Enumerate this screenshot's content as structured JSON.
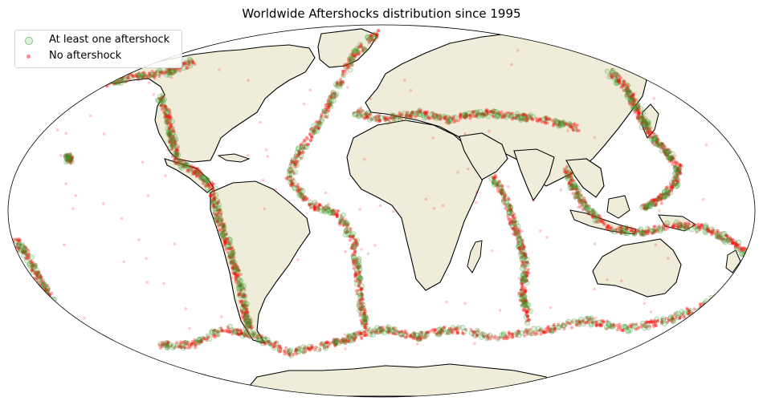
{
  "title": "Worldwide Aftershocks distribution since 1995",
  "legend": {
    "placement": "top-left",
    "items": [
      {
        "label": "At least one aftershock",
        "color": "#2ca02c"
      },
      {
        "label": "No aftershock",
        "color": "#ff0000"
      }
    ]
  },
  "map": {
    "projection": "Mollweide",
    "land_color": "#efedda",
    "coast_color": "#000000",
    "ocean_color": "#ffffff"
  },
  "series": [
    {
      "name": "At least one aftershock",
      "color": "#2ca02c",
      "marker": "hollow-circle"
    },
    {
      "name": "No aftershock",
      "color": "#ff0000",
      "marker": "filled-dot"
    }
  ]
}
